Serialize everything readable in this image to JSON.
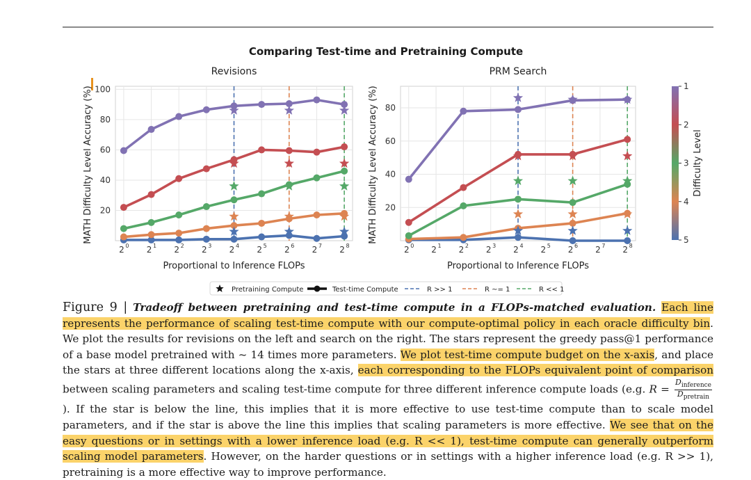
{
  "figure": {
    "suptitle": "Comparing Test-time and Pretraining Compute"
  },
  "legend": {
    "items": [
      {
        "label": "Pretraining Compute",
        "kind": "star"
      },
      {
        "label": "Test-time Compute",
        "kind": "line-dot"
      },
      {
        "label": "R >> 1",
        "kind": "dashed",
        "color": "#4c72b0"
      },
      {
        "label": "R ~= 1",
        "kind": "dashed",
        "color": "#dd8452"
      },
      {
        "label": "R << 1",
        "kind": "dashed",
        "color": "#55a868"
      }
    ]
  },
  "colorbar": {
    "label": "Difficulty Level",
    "ticks": [
      "1",
      "2",
      "3",
      "4",
      "5"
    ],
    "colors": [
      "#8172b3",
      "#c44e52",
      "#55a868",
      "#dd8452",
      "#4c72b0"
    ]
  },
  "chart_data": [
    {
      "type": "line",
      "title": "Revisions",
      "xlabel": "Proportional to Inference FLOPs",
      "ylabel": "MATH Difficulty Level Accuracy (%)",
      "x_scale": "log2",
      "x_ticks": [
        "2^0",
        "2^1",
        "2^2",
        "2^3",
        "2^4",
        "2^5",
        "2^6",
        "2^7",
        "2^8"
      ],
      "xlim": [
        -0.3,
        8.3
      ],
      "ylim": [
        0,
        102
      ],
      "y_ticks": [
        20,
        40,
        60,
        80,
        100
      ],
      "grid": true,
      "vlines": [
        {
          "x": 4,
          "color": "#4c72b0",
          "label": "R >> 1"
        },
        {
          "x": 6,
          "color": "#dd8452",
          "label": "R ~= 1"
        },
        {
          "x": 8,
          "color": "#55a868",
          "label": "R << 1"
        }
      ],
      "series": [
        {
          "name": "1",
          "color": "#8172b3",
          "x": [
            0,
            1,
            2,
            3,
            4,
            5,
            6,
            7,
            8
          ],
          "values": [
            59.5,
            73.5,
            82,
            86.5,
            89,
            90,
            90.5,
            93,
            90
          ]
        },
        {
          "name": "2",
          "color": "#c44e52",
          "x": [
            0,
            1,
            2,
            3,
            4,
            5,
            6,
            7,
            8
          ],
          "values": [
            22,
            30.5,
            41,
            47.5,
            53.5,
            60,
            59.5,
            58.5,
            62
          ]
        },
        {
          "name": "3",
          "color": "#55a868",
          "x": [
            0,
            1,
            2,
            3,
            4,
            5,
            6,
            7,
            8
          ],
          "values": [
            8,
            12,
            17,
            22.5,
            27,
            31,
            37,
            41.5,
            46
          ]
        },
        {
          "name": "4",
          "color": "#dd8452",
          "x": [
            0,
            1,
            2,
            3,
            4,
            5,
            6,
            7,
            8
          ],
          "values": [
            2.5,
            4,
            5,
            8,
            10,
            11.5,
            14.5,
            17,
            18
          ]
        },
        {
          "name": "5",
          "color": "#4c72b0",
          "x": [
            0,
            1,
            2,
            3,
            4,
            5,
            6,
            7,
            8
          ],
          "values": [
            0.5,
            0.5,
            0.5,
            1,
            1,
            2.5,
            3.5,
            1.5,
            3
          ]
        }
      ],
      "stars": [
        {
          "x": 4,
          "y": 86,
          "color": "#8172b3"
        },
        {
          "x": 6,
          "y": 86,
          "color": "#8172b3"
        },
        {
          "x": 8,
          "y": 86,
          "color": "#8172b3"
        },
        {
          "x": 4,
          "y": 51,
          "color": "#c44e52"
        },
        {
          "x": 6,
          "y": 51,
          "color": "#c44e52"
        },
        {
          "x": 8,
          "y": 51,
          "color": "#c44e52"
        },
        {
          "x": 4,
          "y": 36,
          "color": "#55a868"
        },
        {
          "x": 6,
          "y": 36,
          "color": "#55a868"
        },
        {
          "x": 8,
          "y": 36,
          "color": "#55a868"
        },
        {
          "x": 4,
          "y": 16,
          "color": "#dd8452"
        },
        {
          "x": 6,
          "y": 16,
          "color": "#dd8452"
        },
        {
          "x": 8,
          "y": 16,
          "color": "#dd8452"
        },
        {
          "x": 4,
          "y": 6,
          "color": "#4c72b0"
        },
        {
          "x": 6,
          "y": 6,
          "color": "#4c72b0"
        },
        {
          "x": 8,
          "y": 6,
          "color": "#4c72b0"
        }
      ]
    },
    {
      "type": "line",
      "title": "PRM Search",
      "xlabel": "Proportional to Inference FLOPs",
      "ylabel": "MATH Difficulty Level Accuracy (%)",
      "x_scale": "log2",
      "x_ticks": [
        "2^0",
        "2^1",
        "2^2",
        "2^3",
        "2^4",
        "2^5",
        "2^6",
        "2^7",
        "2^8"
      ],
      "xlim": [
        -0.3,
        8.3
      ],
      "ylim": [
        0,
        93
      ],
      "y_ticks": [
        20,
        40,
        60,
        80
      ],
      "grid": true,
      "vlines": [
        {
          "x": 4,
          "color": "#4c72b0",
          "label": "R >> 1"
        },
        {
          "x": 6,
          "color": "#dd8452",
          "label": "R ~= 1"
        },
        {
          "x": 8,
          "color": "#55a868",
          "label": "R << 1"
        }
      ],
      "series": [
        {
          "name": "1",
          "color": "#8172b3",
          "x": [
            0,
            2,
            4,
            6,
            8
          ],
          "values": [
            37,
            78,
            79,
            84.5,
            85
          ]
        },
        {
          "name": "2",
          "color": "#c44e52",
          "x": [
            0,
            2,
            4,
            6,
            8
          ],
          "values": [
            11,
            32,
            52,
            52,
            61
          ]
        },
        {
          "name": "3",
          "color": "#55a868",
          "x": [
            0,
            2,
            4,
            6,
            8
          ],
          "values": [
            3,
            21,
            25,
            23,
            34
          ]
        },
        {
          "name": "4",
          "color": "#dd8452",
          "x": [
            0,
            2,
            4,
            6,
            8
          ],
          "values": [
            1,
            2,
            7.5,
            10.5,
            16.5
          ]
        },
        {
          "name": "5",
          "color": "#4c72b0",
          "x": [
            0,
            2,
            4,
            6,
            8
          ],
          "values": [
            0.5,
            0.5,
            2,
            0,
            0
          ]
        }
      ],
      "stars": [
        {
          "x": 4,
          "y": 86,
          "color": "#8172b3"
        },
        {
          "x": 6,
          "y": 85,
          "color": "#8172b3"
        },
        {
          "x": 8,
          "y": 85,
          "color": "#8172b3"
        },
        {
          "x": 4,
          "y": 51,
          "color": "#c44e52"
        },
        {
          "x": 6,
          "y": 51,
          "color": "#c44e52"
        },
        {
          "x": 8,
          "y": 51,
          "color": "#c44e52"
        },
        {
          "x": 4,
          "y": 36,
          "color": "#55a868"
        },
        {
          "x": 6,
          "y": 36,
          "color": "#55a868"
        },
        {
          "x": 8,
          "y": 36,
          "color": "#55a868"
        },
        {
          "x": 4,
          "y": 16,
          "color": "#dd8452"
        },
        {
          "x": 6,
          "y": 16,
          "color": "#dd8452"
        },
        {
          "x": 8,
          "y": 16,
          "color": "#dd8452"
        },
        {
          "x": 4,
          "y": 6,
          "color": "#4c72b0"
        },
        {
          "x": 6,
          "y": 6,
          "color": "#4c72b0"
        },
        {
          "x": 8,
          "y": 6,
          "color": "#4c72b0"
        }
      ]
    }
  ],
  "caption": {
    "figure_label": "Figure 9 |",
    "title": "Tradeoff between pretraining and test-time compute in a FLOPs-matched evaluation.",
    "s1": "Each line represents the performance of scaling test-time compute with our compute-optimal policy in each oracle difficulty bin",
    "s1_end": ".",
    "s2": " We plot the results for revisions on the left and search on the right. The stars represent the greedy pass@1 performance of a base model pretrained with ~ 14 times more parameters. ",
    "s3": "We plot test-time compute budget on the x-axis",
    "s4": ", and place the stars at three different locations along the x-axis, ",
    "s5": "each corresponding to the FLOPs equivalent point of comparison",
    "s6": " between scaling parameters and scaling test-time compute for three different inference compute loads (e.g. ",
    "r_eq": "R = ",
    "frac_num_main": "D",
    "frac_num_sub": "inference",
    "frac_den_main": "D",
    "frac_den_sub": "pretrain",
    "s7": "). If the star is below the line, this implies that it is more effective to use test-time compute than to scale model parameters, and if the star is above the line this implies that scaling parameters is more effective. ",
    "s8": "We see that on the easy questions or in settings with a lower inference load (e.g. R << 1), test-time compute can generally outperform scaling model parameters",
    "s9": ". However, on the harder questions or in settings with a higher inference load (e.g. R >> 1), pretraining is a more effective way to improve performance."
  }
}
